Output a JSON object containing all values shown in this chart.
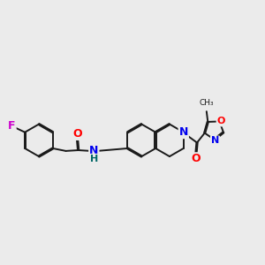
{
  "background_color": "#ebebeb",
  "bond_color": "#1a1a1a",
  "bond_width": 1.4,
  "atom_colors": {
    "F": "#cc00cc",
    "O": "#ff0000",
    "N": "#0000ee",
    "H": "#006666",
    "C": "#1a1a1a"
  },
  "font_size": 8.5
}
